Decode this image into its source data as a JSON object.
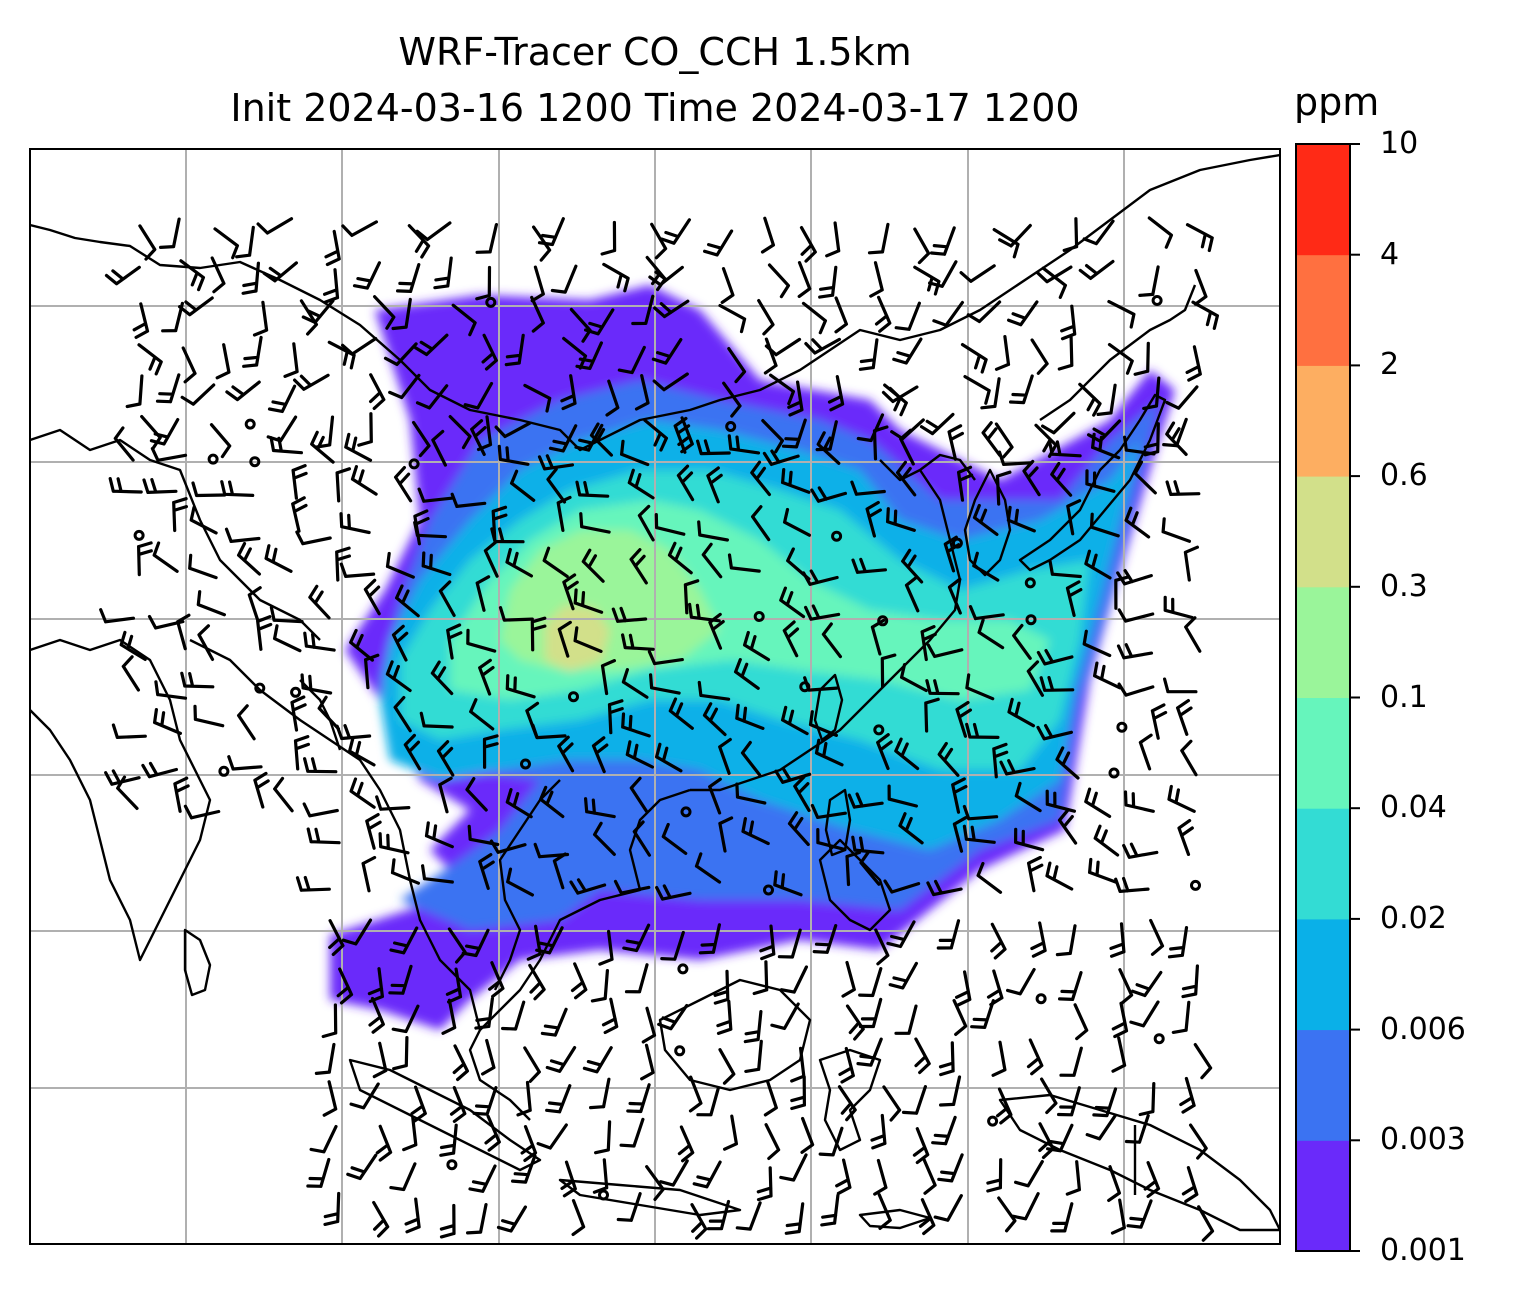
{
  "title": {
    "line1": "WRF-Tracer CO_CCH 1.5km",
    "line2": "Init 2024-03-16 1200 Time 2024-03-17 1200"
  },
  "colorbar": {
    "unit": "ppm",
    "levels": [
      "0.001",
      "0.003",
      "0.006",
      "0.02",
      "0.04",
      "0.1",
      "0.3",
      "0.6",
      "2",
      "4",
      "10"
    ],
    "colors": [
      "#6a2afa",
      "#3b73f2",
      "#0ab0e8",
      "#33dcd4",
      "#66f5bc",
      "#9af59a",
      "#d2e08a",
      "#fdae61",
      "#ff7040",
      "#ff2a16"
    ]
  },
  "map": {
    "gridlines": true,
    "features": [
      "coastlines",
      "wind-barbs",
      "calm-wind-circles",
      "tracer-concentration-fill"
    ]
  }
}
